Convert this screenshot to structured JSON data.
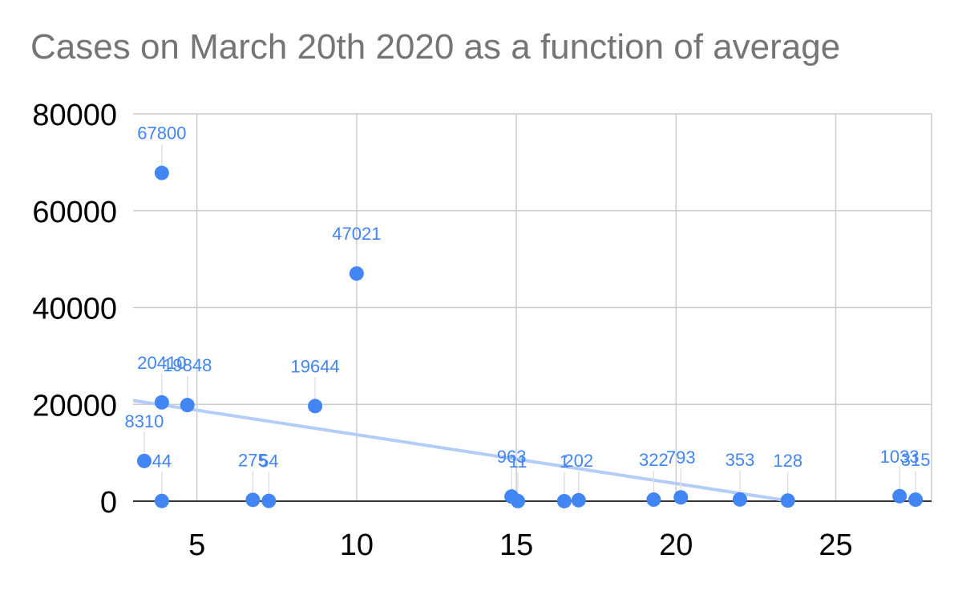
{
  "chart_data": {
    "type": "scatter",
    "title": "Cases on March 20th 2020 as a function of average",
    "xlabel": "",
    "ylabel": "",
    "xlim": [
      3,
      28
    ],
    "ylim": [
      0,
      80000
    ],
    "x_ticks": [
      "5",
      "10",
      "15",
      "20",
      "25"
    ],
    "x_tick_values": [
      5,
      10,
      15,
      20,
      25
    ],
    "y_ticks": [
      "0",
      "20000",
      "40000",
      "60000",
      "80000"
    ],
    "y_tick_values": [
      0,
      20000,
      40000,
      60000,
      80000
    ],
    "grid": true,
    "point_color": "#4285f4",
    "trendline_color": "#b4cdf8",
    "trendline": {
      "type": "linear",
      "x": [
        3,
        23.6
      ],
      "y": [
        20800,
        0
      ]
    },
    "points": [
      {
        "x": 3.35,
        "y": 8310,
        "label": "8310"
      },
      {
        "x": 3.9,
        "y": 67800,
        "label": "67800"
      },
      {
        "x": 3.9,
        "y": 20410,
        "label": "20410"
      },
      {
        "x": 3.9,
        "y": 44,
        "label": "44"
      },
      {
        "x": 4.7,
        "y": 19848,
        "label": "19848"
      },
      {
        "x": 6.75,
        "y": 275,
        "label": "275"
      },
      {
        "x": 7.25,
        "y": 54,
        "label": "54"
      },
      {
        "x": 8.7,
        "y": 19644,
        "label": "19644"
      },
      {
        "x": 10.0,
        "y": 47021,
        "label": "47021"
      },
      {
        "x": 14.85,
        "y": 963,
        "label": "963"
      },
      {
        "x": 15.05,
        "y": 11,
        "label": "11"
      },
      {
        "x": 16.5,
        "y": 1,
        "label": "1"
      },
      {
        "x": 16.95,
        "y": 202,
        "label": "202"
      },
      {
        "x": 19.3,
        "y": 322,
        "label": "322"
      },
      {
        "x": 20.15,
        "y": 793,
        "label": "793"
      },
      {
        "x": 22.0,
        "y": 353,
        "label": "353"
      },
      {
        "x": 23.5,
        "y": 128,
        "label": "128"
      },
      {
        "x": 27.0,
        "y": 1033,
        "label": "1033"
      },
      {
        "x": 27.5,
        "y": 315,
        "label": "315"
      }
    ]
  }
}
